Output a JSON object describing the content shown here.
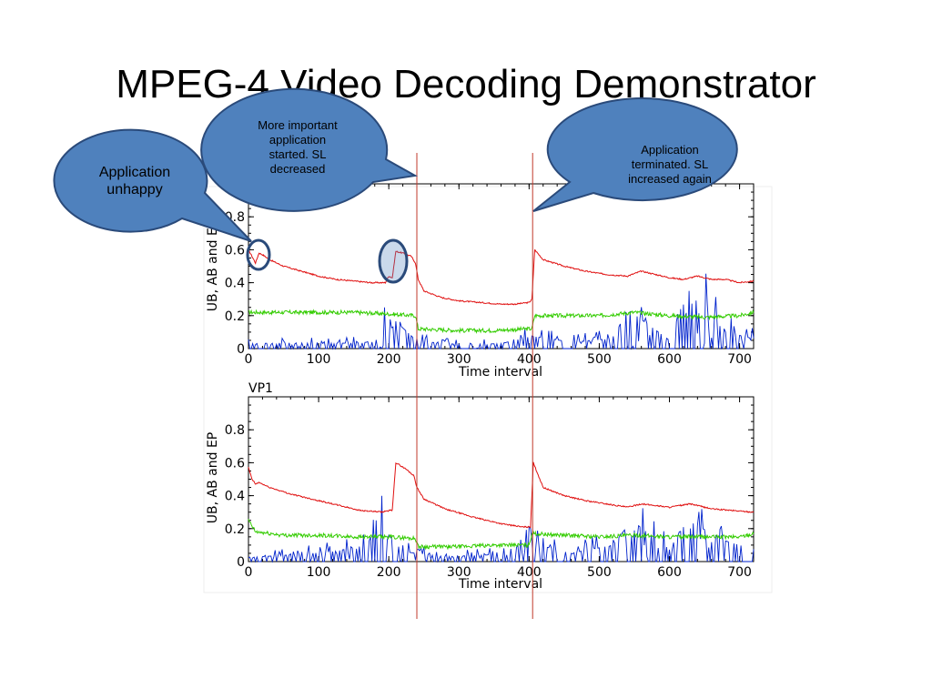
{
  "slide": {
    "title": "MPEG-4 Video Decoding Demonstrator"
  },
  "callouts": [
    {
      "lines": [
        "Application",
        "unhappy"
      ],
      "size": 16
    },
    {
      "lines": [
        "More important",
        "application",
        "started. SL",
        "decreased"
      ],
      "size": 13
    },
    {
      "lines": [
        "Application",
        "terminated. SL",
        "increased again"
      ],
      "size": 13
    }
  ],
  "colors": {
    "ub": "#e01010",
    "ab": "#33cc00",
    "ep": "#0022cc",
    "marker": "#c0392b",
    "callout_fill": "#4f81bd",
    "callout_stroke": "#2a4a7a"
  },
  "markers_x": [
    240,
    405
  ],
  "chart_data": [
    {
      "type": "line",
      "title": "",
      "xlabel": "Time interval",
      "ylabel": "UB, AB and EP",
      "xlim": [
        0,
        720
      ],
      "ylim": [
        0,
        1
      ],
      "xticks": [
        0,
        100,
        200,
        300,
        400,
        500,
        600,
        700
      ],
      "yticks": [
        0,
        0.2,
        0.4,
        0.6,
        0.8
      ],
      "series": [
        {
          "key": "ub",
          "points": [
            [
              0,
              0.6
            ],
            [
              5,
              0.56
            ],
            [
              10,
              0.52
            ],
            [
              15,
              0.58
            ],
            [
              20,
              0.57
            ],
            [
              30,
              0.54
            ],
            [
              50,
              0.5
            ],
            [
              75,
              0.47
            ],
            [
              100,
              0.44
            ],
            [
              125,
              0.42
            ],
            [
              150,
              0.41
            ],
            [
              175,
              0.4
            ],
            [
              195,
              0.4
            ],
            [
              200,
              0.44
            ],
            [
              205,
              0.43
            ],
            [
              210,
              0.59
            ],
            [
              220,
              0.58
            ],
            [
              232,
              0.56
            ],
            [
              238,
              0.52
            ],
            [
              242,
              0.42
            ],
            [
              250,
              0.35
            ],
            [
              275,
              0.31
            ],
            [
              300,
              0.29
            ],
            [
              330,
              0.28
            ],
            [
              360,
              0.27
            ],
            [
              380,
              0.27
            ],
            [
              400,
              0.28
            ],
            [
              404,
              0.3
            ],
            [
              408,
              0.6
            ],
            [
              420,
              0.54
            ],
            [
              450,
              0.5
            ],
            [
              480,
              0.47
            ],
            [
              510,
              0.45
            ],
            [
              540,
              0.44
            ],
            [
              560,
              0.47
            ],
            [
              580,
              0.45
            ],
            [
              600,
              0.43
            ],
            [
              620,
              0.42
            ],
            [
              640,
              0.44
            ],
            [
              660,
              0.42
            ],
            [
              680,
              0.42
            ],
            [
              700,
              0.4
            ],
            [
              720,
              0.41
            ]
          ]
        },
        {
          "key": "ab",
          "points": [
            [
              0,
              0.22
            ],
            [
              50,
              0.22
            ],
            [
              100,
              0.22
            ],
            [
              150,
              0.22
            ],
            [
              200,
              0.21
            ],
            [
              238,
              0.2
            ],
            [
              242,
              0.12
            ],
            [
              300,
              0.11
            ],
            [
              350,
              0.11
            ],
            [
              400,
              0.12
            ],
            [
              404,
              0.12
            ],
            [
              408,
              0.2
            ],
            [
              450,
              0.2
            ],
            [
              500,
              0.2
            ],
            [
              550,
              0.22
            ],
            [
              600,
              0.2
            ],
            [
              650,
              0.19
            ],
            [
              700,
              0.2
            ],
            [
              720,
              0.22
            ]
          ]
        },
        {
          "key": "ep",
          "points": [
            [
              0,
              0.06
            ],
            [
              60,
              0.07
            ],
            [
              120,
              0.06
            ],
            [
              180,
              0.08
            ],
            [
              204,
              0.38
            ],
            [
              240,
              0.09
            ],
            [
              300,
              0.05
            ],
            [
              360,
              0.06
            ],
            [
              404,
              0.15
            ],
            [
              460,
              0.08
            ],
            [
              520,
              0.12
            ],
            [
              540,
              0.48
            ],
            [
              600,
              0.1
            ],
            [
              636,
              0.6
            ],
            [
              680,
              0.2
            ],
            [
              720,
              0.12
            ]
          ]
        }
      ]
    },
    {
      "type": "line",
      "title": "VP1",
      "xlabel": "Time interval",
      "ylabel": "UB, AB and EP",
      "xlim": [
        0,
        720
      ],
      "ylim": [
        0,
        1
      ],
      "xticks": [
        0,
        100,
        200,
        300,
        400,
        500,
        600,
        700
      ],
      "yticks": [
        0,
        0.2,
        0.4,
        0.6,
        0.8
      ],
      "series": [
        {
          "key": "ub",
          "points": [
            [
              0,
              0.57
            ],
            [
              5,
              0.5
            ],
            [
              10,
              0.47
            ],
            [
              15,
              0.48
            ],
            [
              30,
              0.45
            ],
            [
              60,
              0.41
            ],
            [
              100,
              0.37
            ],
            [
              130,
              0.34
            ],
            [
              160,
              0.31
            ],
            [
              190,
              0.3
            ],
            [
              200,
              0.31
            ],
            [
              205,
              0.31
            ],
            [
              210,
              0.6
            ],
            [
              225,
              0.56
            ],
            [
              236,
              0.52
            ],
            [
              240,
              0.45
            ],
            [
              250,
              0.38
            ],
            [
              280,
              0.32
            ],
            [
              320,
              0.27
            ],
            [
              360,
              0.23
            ],
            [
              390,
              0.21
            ],
            [
              402,
              0.21
            ],
            [
              406,
              0.6
            ],
            [
              420,
              0.45
            ],
            [
              450,
              0.4
            ],
            [
              480,
              0.37
            ],
            [
              510,
              0.35
            ],
            [
              540,
              0.33
            ],
            [
              560,
              0.35
            ],
            [
              580,
              0.34
            ],
            [
              600,
              0.33
            ],
            [
              630,
              0.35
            ],
            [
              660,
              0.32
            ],
            [
              690,
              0.31
            ],
            [
              720,
              0.3
            ]
          ]
        },
        {
          "key": "ab",
          "points": [
            [
              0,
              0.25
            ],
            [
              10,
              0.18
            ],
            [
              50,
              0.16
            ],
            [
              100,
              0.16
            ],
            [
              150,
              0.15
            ],
            [
              200,
              0.15
            ],
            [
              238,
              0.14
            ],
            [
              242,
              0.09
            ],
            [
              300,
              0.09
            ],
            [
              350,
              0.1
            ],
            [
              400,
              0.1
            ],
            [
              404,
              0.17
            ],
            [
              450,
              0.16
            ],
            [
              500,
              0.15
            ],
            [
              550,
              0.16
            ],
            [
              600,
              0.15
            ],
            [
              650,
              0.15
            ],
            [
              700,
              0.15
            ],
            [
              720,
              0.17
            ]
          ]
        },
        {
          "key": "ep",
          "points": [
            [
              0,
              0.05
            ],
            [
              60,
              0.08
            ],
            [
              120,
              0.12
            ],
            [
              170,
              0.2
            ],
            [
              182,
              0.5
            ],
            [
              220,
              0.12
            ],
            [
              280,
              0.06
            ],
            [
              340,
              0.08
            ],
            [
              404,
              0.22
            ],
            [
              460,
              0.1
            ],
            [
              520,
              0.2
            ],
            [
              546,
              0.5
            ],
            [
              600,
              0.15
            ],
            [
              626,
              0.5
            ],
            [
              680,
              0.25
            ],
            [
              720,
              0.15
            ]
          ]
        }
      ]
    }
  ]
}
